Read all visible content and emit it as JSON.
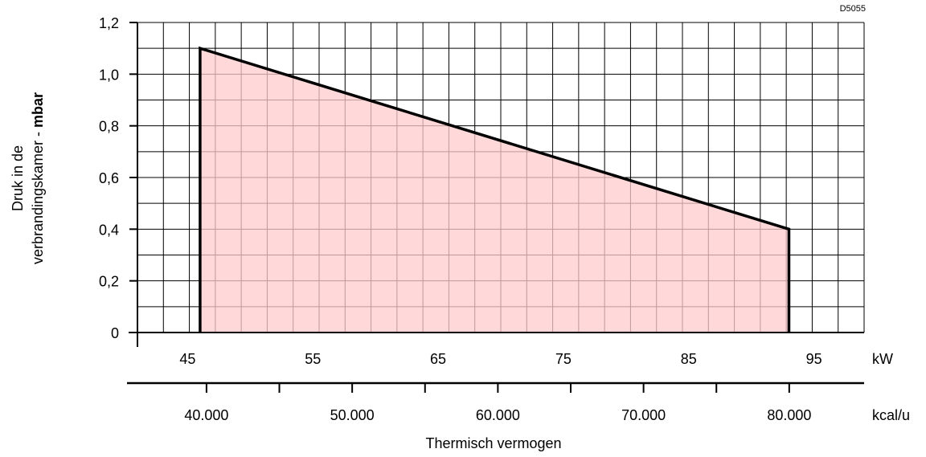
{
  "doc_code": "D5055",
  "colors": {
    "fill": "#ffcccc",
    "line": "#000000",
    "grid": "#000000"
  },
  "chart_data": {
    "type": "area",
    "title": "",
    "ylabel_line1": "Druk in de",
    "ylabel_line2_normal": "verbrandingskamer - ",
    "ylabel_line2_bold": "mbar",
    "xlabel": "Thermisch vermogen",
    "x_unit": "kW",
    "x2_unit": "kcal/u",
    "xlim": [
      41,
      99
    ],
    "ylim": [
      0,
      1.2
    ],
    "grid": true,
    "y_ticks": [
      {
        "value": 0,
        "label": "0"
      },
      {
        "value": 0.2,
        "label": "0,2"
      },
      {
        "value": 0.4,
        "label": "0,4"
      },
      {
        "value": 0.6,
        "label": "0,6"
      },
      {
        "value": 0.8,
        "label": "0,8"
      },
      {
        "value": 1.0,
        "label": "1,0"
      },
      {
        "value": 1.2,
        "label": "1,2"
      }
    ],
    "x_ticks": [
      {
        "value": 45,
        "label": "45"
      },
      {
        "value": 55,
        "label": "55"
      },
      {
        "value": 65,
        "label": "65"
      },
      {
        "value": 75,
        "label": "75"
      },
      {
        "value": 85,
        "label": "85"
      },
      {
        "value": 95,
        "label": "95"
      }
    ],
    "x2_ticks": [
      {
        "value": 40000,
        "label": "40.000"
      },
      {
        "value": 50000,
        "label": "50.000"
      },
      {
        "value": 60000,
        "label": "60.000"
      },
      {
        "value": 70000,
        "label": "70.000"
      },
      {
        "value": 80000,
        "label": "80.000"
      }
    ],
    "x2_minor_ticks": [
      45000,
      55000,
      65000,
      75000
    ],
    "series": [
      {
        "x": [
          46,
          46,
          93,
          93
        ],
        "y": [
          0,
          1.1,
          0.4,
          0
        ]
      }
    ]
  }
}
